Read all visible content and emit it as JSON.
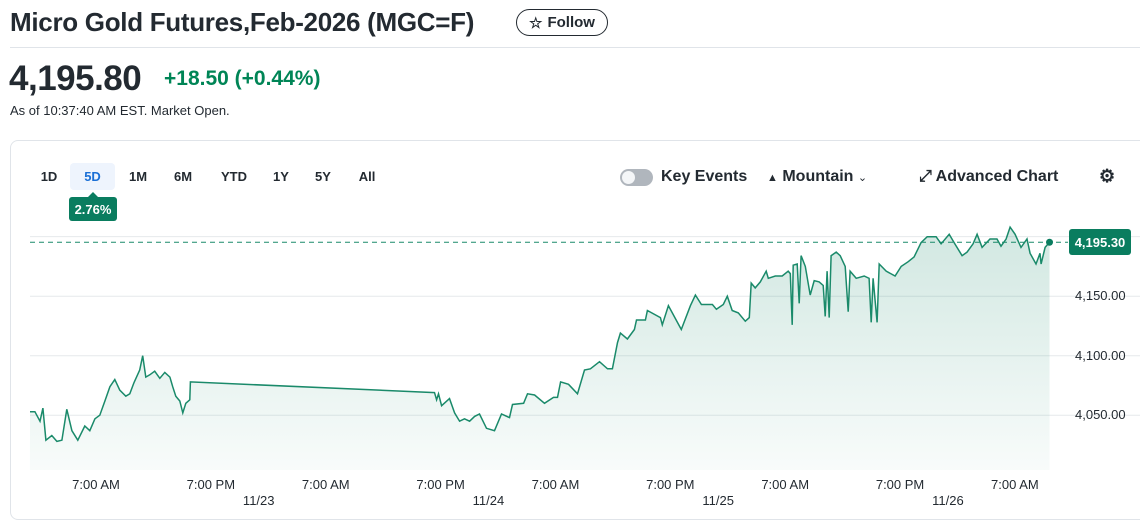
{
  "header": {
    "title": "Micro Gold Futures,Feb-2026 (MGC=F)",
    "follow_label": "Follow",
    "follow_icon": "star-outline-icon"
  },
  "quote": {
    "price": "4,195.80",
    "change": "+18.50 (+0.44%)",
    "as_of": "As of 10:37:40 AM EST. Market Open.",
    "change_color": "#008556"
  },
  "ranges": {
    "items": [
      "1D",
      "5D",
      "1M",
      "6M",
      "YTD",
      "1Y",
      "5Y",
      "All"
    ],
    "selected": "5D",
    "selected_change": "2.76%"
  },
  "toolbar": {
    "key_events_label": "Key Events",
    "key_events_on": false,
    "chart_type_label": "Mountain",
    "advanced_label": "Advanced Chart",
    "settings_icon": "gear-icon"
  },
  "chart_data": {
    "type": "area",
    "line_color": "#1a8a6a",
    "current_price_label": "4,195.30",
    "y_ticks": [
      "4,150.00",
      "4,100.00",
      "4,050.00"
    ],
    "y_tick_values": [
      4150,
      4100,
      4050
    ],
    "ylim": [
      4004,
      4214
    ],
    "xlim": [
      "11/22 00:00",
      "11/26 11:05"
    ],
    "x_ticks": [
      {
        "t": "11/22 07:00",
        "label": "7:00 AM"
      },
      {
        "t": "11/22 19:00",
        "label": "7:00 PM"
      },
      {
        "t": "11/23 07:00",
        "label": "7:00 AM"
      },
      {
        "t": "11/23 19:00",
        "label": "7:00 PM"
      },
      {
        "t": "11/24 07:00",
        "label": "7:00 AM"
      },
      {
        "t": "11/24 19:00",
        "label": "7:00 PM"
      },
      {
        "t": "11/25 07:00",
        "label": "7:00 AM"
      },
      {
        "t": "11/25 19:00",
        "label": "7:00 PM"
      },
      {
        "t": "11/26 07:00",
        "label": "7:00 AM"
      }
    ],
    "date_ticks": [
      {
        "t": "11/23 00:00",
        "label": "11/23"
      },
      {
        "t": "11/24 00:00",
        "label": "11/24"
      },
      {
        "t": "11/25 00:00",
        "label": "11/25"
      },
      {
        "t": "11/26 00:00",
        "label": "11/26"
      }
    ],
    "points": [
      [
        "11/22 00:06",
        4053
      ],
      [
        "11/22 00:37",
        4053
      ],
      [
        "11/22 01:09",
        4045
      ],
      [
        "11/22 01:27",
        4056
      ],
      [
        "11/22 01:46",
        4029
      ],
      [
        "11/22 02:23",
        4033
      ],
      [
        "11/22 02:55",
        4028
      ],
      [
        "11/22 03:26",
        4029
      ],
      [
        "11/22 03:57",
        4055
      ],
      [
        "11/22 04:29",
        4037
      ],
      [
        "11/22 05:06",
        4029
      ],
      [
        "11/22 05:50",
        4041
      ],
      [
        "11/22 06:21",
        4037
      ],
      [
        "11/22 06:53",
        4047
      ],
      [
        "11/22 07:24",
        4050
      ],
      [
        "11/22 07:56",
        4062
      ],
      [
        "11/22 08:27",
        4074
      ],
      [
        "11/22 08:58",
        4080
      ],
      [
        "11/22 09:29",
        4071
      ],
      [
        "11/22 10:07",
        4066
      ],
      [
        "11/22 10:32",
        4068
      ],
      [
        "11/22 10:57",
        4077
      ],
      [
        "11/22 11:34",
        4088
      ],
      [
        "11/22 11:53",
        4100
      ],
      [
        "11/22 12:12",
        4082
      ],
      [
        "11/22 12:37",
        4084
      ],
      [
        "11/22 13:08",
        4087
      ],
      [
        "11/22 13:40",
        4081
      ],
      [
        "11/22 14:11",
        4086
      ],
      [
        "11/22 14:43",
        4082
      ],
      [
        "11/22 15:01",
        4074
      ],
      [
        "11/22 15:20",
        4066
      ],
      [
        "11/22 15:45",
        4062
      ],
      [
        "11/22 16:04",
        4052
      ],
      [
        "11/22 16:23",
        4060
      ],
      [
        "11/22 16:48",
        4063
      ],
      [
        "11/22 16:52",
        4078
      ],
      [
        "11/23 18:22",
        4069
      ],
      [
        "11/23 18:35",
        4063
      ],
      [
        "11/23 18:47",
        4068
      ],
      [
        "11/23 19:06",
        4058
      ],
      [
        "11/23 19:56",
        4064
      ],
      [
        "11/23 20:28",
        4052
      ],
      [
        "11/23 20:59",
        4045
      ],
      [
        "11/23 21:30",
        4047
      ],
      [
        "11/23 22:02",
        4045
      ],
      [
        "11/23 22:33",
        4049
      ],
      [
        "11/23 23:04",
        4051
      ],
      [
        "11/23 23:48",
        4039
      ],
      [
        "11/24 00:38",
        4037
      ],
      [
        "11/24 01:22",
        4051
      ],
      [
        "11/24 02:12",
        4048
      ],
      [
        "11/24 02:31",
        4059
      ],
      [
        "11/24 03:40",
        4060
      ],
      [
        "11/24 04:05",
        4068
      ],
      [
        "11/24 04:49",
        4067
      ],
      [
        "11/24 05:51",
        4060
      ],
      [
        "11/24 06:48",
        4065
      ],
      [
        "11/24 07:13",
        4065
      ],
      [
        "11/24 07:32",
        4078
      ],
      [
        "11/24 08:22",
        4076
      ],
      [
        "11/24 09:18",
        4068
      ],
      [
        "11/24 10:02",
        4088
      ],
      [
        "11/24 10:39",
        4089
      ],
      [
        "11/24 11:36",
        4095
      ],
      [
        "11/24 12:26",
        4089
      ],
      [
        "11/24 12:57",
        4089
      ],
      [
        "11/24 13:29",
        4111
      ],
      [
        "11/24 13:47",
        4119
      ],
      [
        "11/24 14:31",
        4114
      ],
      [
        "11/24 15:15",
        4122
      ],
      [
        "11/24 15:28",
        4130
      ],
      [
        "11/24 16:24",
        4130
      ],
      [
        "11/24 16:36",
        4138
      ],
      [
        "11/24 17:58",
        4132
      ],
      [
        "11/24 18:10",
        4126
      ],
      [
        "11/24 18:48",
        4142
      ],
      [
        "11/24 19:57",
        4125
      ],
      [
        "11/24 20:09",
        4122
      ],
      [
        "11/24 21:06",
        4142
      ],
      [
        "11/24 21:37",
        4151
      ],
      [
        "11/24 22:15",
        4143
      ],
      [
        "11/24 23:24",
        4143
      ],
      [
        "11/24 23:49",
        4139
      ],
      [
        "11/25 00:32",
        4143
      ],
      [
        "11/25 00:57",
        4150
      ],
      [
        "11/25 01:28",
        4138
      ],
      [
        "11/25 02:06",
        4136
      ],
      [
        "11/25 02:50",
        4129
      ],
      [
        "11/25 03:15",
        4132
      ],
      [
        "11/25 03:27",
        4161
      ],
      [
        "11/25 03:52",
        4157
      ],
      [
        "11/25 04:24",
        4162
      ],
      [
        "11/25 05:01",
        4171
      ],
      [
        "11/25 05:14",
        4165
      ],
      [
        "11/25 05:58",
        4167
      ],
      [
        "11/25 06:41",
        4167
      ],
      [
        "11/25 07:19",
        4171
      ],
      [
        "11/25 07:32",
        4169
      ],
      [
        "11/25 07:44",
        4126
      ],
      [
        "11/25 07:50",
        4176
      ],
      [
        "11/25 08:15",
        4177
      ],
      [
        "11/25 08:28",
        4144
      ],
      [
        "11/25 08:40",
        4184
      ],
      [
        "11/25 09:06",
        4175
      ],
      [
        "11/25 09:37",
        4151
      ],
      [
        "11/25 10:02",
        4163
      ],
      [
        "11/25 10:33",
        4162
      ],
      [
        "11/25 10:58",
        4159
      ],
      [
        "11/25 11:11",
        4133
      ],
      [
        "11/25 11:23",
        4171
      ],
      [
        "11/25 11:36",
        4132
      ],
      [
        "11/25 11:48",
        4184
      ],
      [
        "11/25 12:20",
        4187
      ],
      [
        "11/25 12:45",
        4184
      ],
      [
        "11/25 13:16",
        4175
      ],
      [
        "11/25 13:35",
        4137
      ],
      [
        "11/25 13:47",
        4171
      ],
      [
        "11/25 14:25",
        4165
      ],
      [
        "11/25 15:15",
        4167
      ],
      [
        "11/25 15:46",
        4165
      ],
      [
        "11/25 15:59",
        4128
      ],
      [
        "11/25 16:11",
        4165
      ],
      [
        "11/25 16:36",
        4128
      ],
      [
        "11/25 16:49",
        4177
      ],
      [
        "11/25 17:33",
        4171
      ],
      [
        "11/25 18:29",
        4167
      ],
      [
        "11/25 19:07",
        4175
      ],
      [
        "11/25 19:51",
        4179
      ],
      [
        "11/25 20:28",
        4183
      ],
      [
        "11/25 21:12",
        4195
      ],
      [
        "11/25 21:50",
        4200
      ],
      [
        "11/25 22:46",
        4200
      ],
      [
        "11/25 23:17",
        4194
      ],
      [
        "11/26 00:08",
        4202
      ],
      [
        "11/26 00:39",
        4195
      ],
      [
        "11/26 01:29",
        4184
      ],
      [
        "11/26 02:00",
        4187
      ],
      [
        "11/26 02:38",
        4194
      ],
      [
        "11/26 03:03",
        4202
      ],
      [
        "11/26 03:34",
        4191
      ],
      [
        "11/26 04:24",
        4198
      ],
      [
        "11/26 05:08",
        4198
      ],
      [
        "11/26 05:33",
        4192
      ],
      [
        "11/26 06:05",
        4198
      ],
      [
        "11/26 06:30",
        4208
      ],
      [
        "11/26 07:01",
        4202
      ],
      [
        "11/26 07:38",
        4191
      ],
      [
        "11/26 08:16",
        4198
      ],
      [
        "11/26 08:35",
        4186
      ],
      [
        "11/26 09:12",
        4177
      ],
      [
        "11/26 09:37",
        4186
      ],
      [
        "11/26 09:44",
        4177
      ],
      [
        "11/26 10:09",
        4191
      ],
      [
        "11/26 10:37",
        4195.3
      ]
    ]
  }
}
